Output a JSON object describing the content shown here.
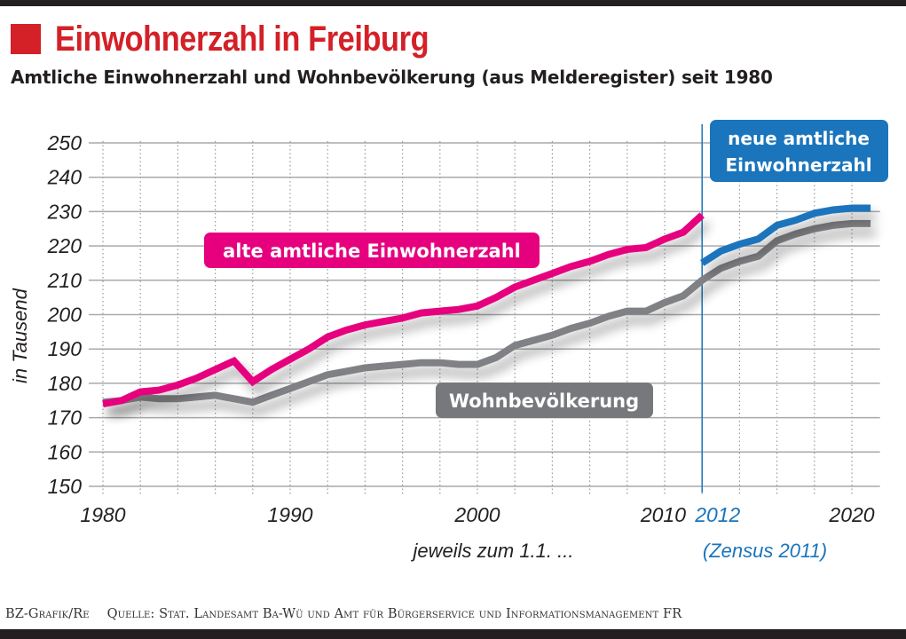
{
  "header": {
    "title": "Einwohnerzahl in Freiburg",
    "subtitle": "Amtliche Einwohnerzahl und Wohnbevölkerung (aus Melderegister) seit 1980",
    "accent_color": "#d42027"
  },
  "footer": {
    "credit": "BZ-Grafik/Re",
    "source": "Quelle: Stat. Landesamt Ba-Wü und Amt für Bürgerservice und Informationsmanagement FR"
  },
  "chart_data": {
    "type": "line",
    "title": "Einwohnerzahl in Freiburg",
    "ylabel": "in Tausend",
    "xlabel": "jeweils zum 1.1. ...",
    "ylim": [
      150,
      250
    ],
    "xlim": [
      1980,
      2022
    ],
    "yticks": [
      150,
      160,
      170,
      180,
      190,
      200,
      210,
      220,
      230,
      240,
      250
    ],
    "xtick_labels": [
      {
        "value": 1980,
        "label": "1980",
        "color": "#231f20"
      },
      {
        "value": 1990,
        "label": "1990",
        "color": "#231f20"
      },
      {
        "value": 2000,
        "label": "2000",
        "color": "#231f20"
      },
      {
        "value": 2010,
        "label": "2010",
        "color": "#231f20"
      },
      {
        "value": 2012,
        "label": "2012",
        "color": "#1a75bc"
      },
      {
        "value": 2020,
        "label": "2020",
        "color": "#231f20"
      }
    ],
    "grid": true,
    "census_marker": {
      "x": 2012,
      "label": "(Zensus 2011)",
      "color": "#1a75bc"
    },
    "series": [
      {
        "name": "alte amtliche Einwohnerzahl",
        "color": "#e6007e",
        "x": [
          1980,
          1981,
          1982,
          1983,
          1984,
          1985,
          1986,
          1987,
          1988,
          1989,
          1990,
          1991,
          1992,
          1993,
          1994,
          1995,
          1996,
          1997,
          1998,
          1999,
          2000,
          2001,
          2002,
          2003,
          2004,
          2005,
          2006,
          2007,
          2008,
          2009,
          2010,
          2011,
          2012
        ],
        "values": [
          174,
          175,
          177.5,
          178,
          179.5,
          181.5,
          184,
          186.5,
          180.5,
          184,
          187,
          190,
          193.5,
          195.5,
          197,
          198,
          199,
          200.5,
          201,
          201.5,
          202.5,
          205,
          208,
          210,
          212,
          214,
          215.5,
          217.5,
          219,
          219.5,
          222,
          224,
          229
        ]
      },
      {
        "name": "Wohnbevölkerung",
        "color": "#808184",
        "x": [
          1980,
          1981,
          1982,
          1983,
          1984,
          1985,
          1986,
          1987,
          1988,
          1989,
          1990,
          1991,
          1992,
          1993,
          1994,
          1995,
          1996,
          1997,
          1998,
          1999,
          2000,
          2001,
          2002,
          2003,
          2004,
          2005,
          2006,
          2007,
          2008,
          2009,
          2010,
          2011,
          2012,
          2013,
          2014,
          2015,
          2016,
          2017,
          2018,
          2019,
          2020,
          2021
        ],
        "values": [
          174.5,
          175,
          176,
          175.5,
          175.5,
          176,
          176.5,
          175.5,
          174.5,
          176.5,
          178.5,
          180.5,
          182.5,
          183.5,
          184.5,
          185,
          185.5,
          186,
          186,
          185.5,
          185.5,
          187.5,
          191,
          192.5,
          194,
          196,
          197.5,
          199.5,
          201,
          201,
          203.5,
          205.5,
          210,
          213.5,
          215.5,
          217,
          221.5,
          223.5,
          225,
          226,
          226.5,
          226.5
        ]
      },
      {
        "name": "neue amtliche Einwohnerzahl",
        "color": "#1a75bc",
        "x": [
          2012,
          2013,
          2014,
          2015,
          2016,
          2017,
          2018,
          2019,
          2020,
          2021
        ],
        "values": [
          215,
          218.5,
          220.5,
          222,
          226,
          227.5,
          229.5,
          230.5,
          231,
          231
        ]
      }
    ]
  }
}
